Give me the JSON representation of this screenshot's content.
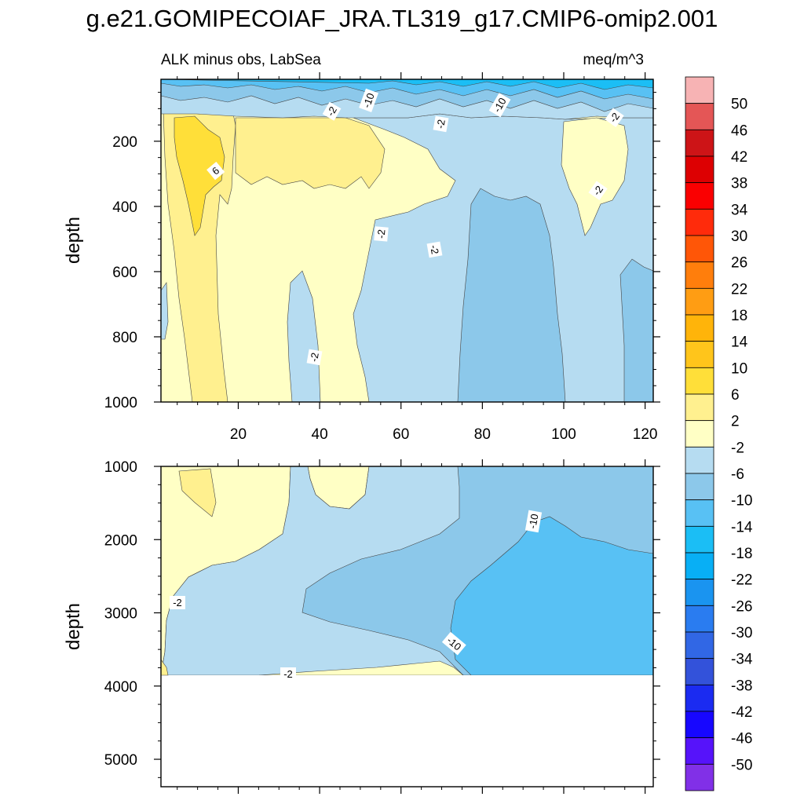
{
  "chart_data": {
    "type": "contour",
    "title": "g.e21.GOMIPECOIAF_JRA.TL319_g17.CMIP6-omip2.001",
    "subtitle_left": "ALK minus obs, LabSea",
    "subtitle_right": "meq/m^3",
    "colorbar": {
      "levels": [
        "50",
        "46",
        "42",
        "38",
        "34",
        "30",
        "26",
        "22",
        "18",
        "14",
        "10",
        "6",
        "2",
        "-2",
        "-6",
        "-10",
        "-14",
        "-18",
        "-22",
        "-26",
        "-30",
        "-34",
        "-38",
        "-42",
        "-46",
        "-50"
      ],
      "colors": [
        "#f7b3b4",
        "#e45656",
        "#cd1417",
        "#dd0002",
        "#fa0001",
        "#ff2b0b",
        "#ff5607",
        "#ff7e0c",
        "#ff9d13",
        "#ffb40a",
        "#ffc51b",
        "#ffdf39",
        "#fff08f",
        "#ffffc5",
        "#b6dcf1",
        "#8cc8ea",
        "#58c1f4",
        "#1bbef5",
        "#08aff5",
        "#1a94f0",
        "#2a7cf0",
        "#3167e5",
        "#3352da",
        "#1b2bf1",
        "#1707ff",
        "#5613fa",
        "#8130e7"
      ]
    },
    "panels": [
      {
        "name": "upper",
        "ylabel": "depth",
        "y_ticks": [
          "200",
          "400",
          "600",
          "800",
          "1000"
        ],
        "x_ticks": [
          "20",
          "40",
          "60",
          "80",
          "100",
          "120"
        ],
        "xlim": [
          1,
          122
        ],
        "ylim": [
          1000,
          10
        ],
        "contour_labels": [
          "6",
          "-2",
          "-10",
          "-2",
          "-10",
          "-2",
          "-2",
          "-2",
          "-2",
          "-2"
        ]
      },
      {
        "name": "lower",
        "ylabel": "depth",
        "y_ticks": [
          "1000",
          "2000",
          "3000",
          "4000",
          "5000"
        ],
        "xlim": [
          1,
          122
        ],
        "ylim": [
          5375,
          1000
        ],
        "contour_labels": [
          "-2",
          "-10",
          "-10",
          "-2"
        ]
      }
    ]
  }
}
